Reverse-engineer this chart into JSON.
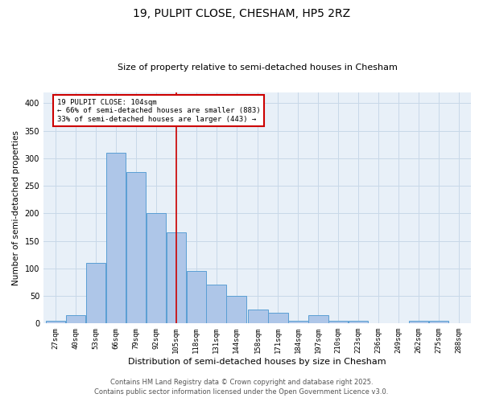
{
  "title1": "19, PULPIT CLOSE, CHESHAM, HP5 2RZ",
  "title2": "Size of property relative to semi-detached houses in Chesham",
  "xlabel": "Distribution of semi-detached houses by size in Chesham",
  "ylabel": "Number of semi-detached properties",
  "bins": [
    27,
    40,
    53,
    66,
    79,
    92,
    105,
    118,
    131,
    144,
    158,
    171,
    184,
    197,
    210,
    223,
    236,
    249,
    262,
    275,
    288
  ],
  "bin_labels": [
    "27sqm",
    "40sqm",
    "53sqm",
    "66sqm",
    "79sqm",
    "92sqm",
    "105sqm",
    "118sqm",
    "131sqm",
    "144sqm",
    "158sqm",
    "171sqm",
    "184sqm",
    "197sqm",
    "210sqm",
    "223sqm",
    "236sqm",
    "249sqm",
    "262sqm",
    "275sqm",
    "288sqm"
  ],
  "values": [
    5,
    15,
    110,
    310,
    275,
    200,
    165,
    95,
    70,
    50,
    25,
    20,
    5,
    15,
    5,
    5,
    0,
    0,
    5,
    5,
    0
  ],
  "bar_color": "#aec6e8",
  "bar_edge_color": "#5a9fd4",
  "property_line_x": 105,
  "annotation_text": "19 PULPIT CLOSE: 104sqm\n← 66% of semi-detached houses are smaller (883)\n33% of semi-detached houses are larger (443) →",
  "annotation_box_color": "#ffffff",
  "annotation_border_color": "#cc0000",
  "vline_color": "#cc0000",
  "ylim": [
    0,
    420
  ],
  "yticks": [
    0,
    50,
    100,
    150,
    200,
    250,
    300,
    350,
    400
  ],
  "grid_color": "#c8d8e8",
  "bg_color": "#e8f0f8",
  "footer1": "Contains HM Land Registry data © Crown copyright and database right 2025.",
  "footer2": "Contains public sector information licensed under the Open Government Licence v3.0."
}
